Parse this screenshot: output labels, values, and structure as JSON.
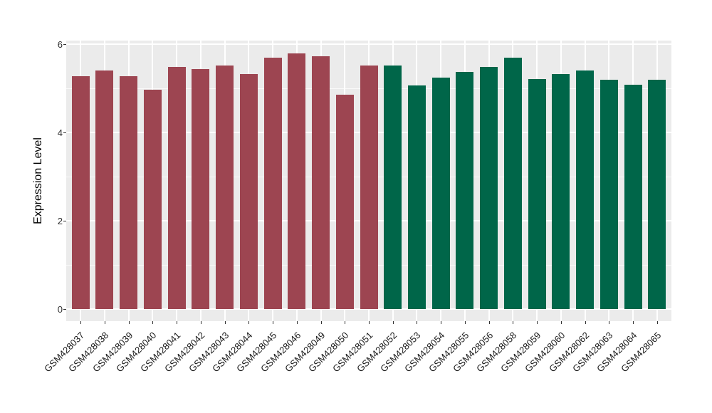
{
  "figure": {
    "background_color": "#ffffff",
    "panel_background_color": "#EBEBEB",
    "gridline_color": "#ffffff"
  },
  "chart_data": {
    "type": "bar",
    "title": "",
    "xlabel": "",
    "ylabel": "Expression Level",
    "ylim": [
      0,
      6.08
    ],
    "yticks": [
      0,
      2,
      4,
      6
    ],
    "yticks_minor": [
      1,
      3,
      5
    ],
    "grid": "on",
    "legend": "none",
    "categories": [
      "GSM428037",
      "GSM428038",
      "GSM428039",
      "GSM428040",
      "GSM428041",
      "GSM428042",
      "GSM428043",
      "GSM428044",
      "GSM428045",
      "GSM428046",
      "GSM428049",
      "GSM428050",
      "GSM428051",
      "GSM428052",
      "GSM428053",
      "GSM428054",
      "GSM428055",
      "GSM428056",
      "GSM428058",
      "GSM428059",
      "GSM428060",
      "GSM428062",
      "GSM428063",
      "GSM428064",
      "GSM428065"
    ],
    "values": [
      5.27,
      5.41,
      5.27,
      4.96,
      5.48,
      5.44,
      5.51,
      5.32,
      5.69,
      5.79,
      5.72,
      4.85,
      5.52,
      5.51,
      5.07,
      5.25,
      5.37,
      5.49,
      5.7,
      5.21,
      5.33,
      5.4,
      5.19,
      5.08,
      5.19
    ],
    "bar_color_keys": [
      "red",
      "red",
      "red",
      "red",
      "red",
      "red",
      "red",
      "red",
      "red",
      "red",
      "red",
      "red",
      "red",
      "green",
      "green",
      "green",
      "green",
      "green",
      "green",
      "green",
      "green",
      "green",
      "green",
      "green",
      "green"
    ],
    "colors": {
      "red": "#9D4551",
      "green": "#006649"
    }
  }
}
